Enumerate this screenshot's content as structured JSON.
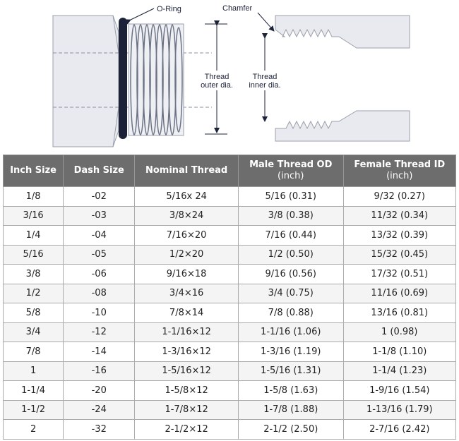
{
  "diagram": {
    "o_ring": "O-Ring",
    "chamfer": "Chamfer",
    "outer_label": [
      "Thread",
      "outer dia."
    ],
    "inner_label": [
      "Thread",
      "inner dia."
    ]
  },
  "table": {
    "header": [
      "Inch Size",
      "Dash Size",
      "Nominal Thread",
      [
        "Male Thread OD",
        "(inch)"
      ],
      [
        "Female Thread ID",
        "(inch)"
      ]
    ],
    "rows": [
      [
        "1/8",
        "-02",
        "5/16x 24",
        "5/16 (0.31)",
        "9/32 (0.27)"
      ],
      [
        "3/16",
        "-03",
        "3/8×24",
        "3/8 (0.38)",
        "11/32 (0.34)"
      ],
      [
        "1/4",
        "-04",
        "7/16×20",
        "7/16 (0.44)",
        "13/32 (0.39)"
      ],
      [
        "5/16",
        "-05",
        "1/2×20",
        "1/2 (0.50)",
        "15/32 (0.45)"
      ],
      [
        "3/8",
        "-06",
        "9/16×18",
        "9/16 (0.56)",
        "17/32 (0.51)"
      ],
      [
        "1/2",
        "-08",
        "3/4×16",
        "3/4 (0.75)",
        "11/16 (0.69)"
      ],
      [
        "5/8",
        "-10",
        "7/8×14",
        "7/8 (0.88)",
        "13/16 (0.81)"
      ],
      [
        "3/4",
        "-12",
        "1-1/16×12",
        "1-1/16 (1.06)",
        "1 (0.98)"
      ],
      [
        "7/8",
        "-14",
        "1-3/16×12",
        "1-3/16 (1.19)",
        "1-1/8 (1.10)"
      ],
      [
        "1",
        "-16",
        "1-5/16×12",
        "1-5/16 (1.31)",
        "1-1/4 (1.23)"
      ],
      [
        "1-1/4",
        "-20",
        "1-5/8×12",
        "1-5/8 (1.63)",
        "1-9/16 (1.54)"
      ],
      [
        "1-1/2",
        "-24",
        "1-7/8×12",
        "1-7/8 (1.88)",
        "1-13/16 (1.79)"
      ],
      [
        "2",
        "-32",
        "2-1/2×12",
        "2-1/2 (2.50)",
        "2-7/16 (2.42)"
      ]
    ]
  }
}
